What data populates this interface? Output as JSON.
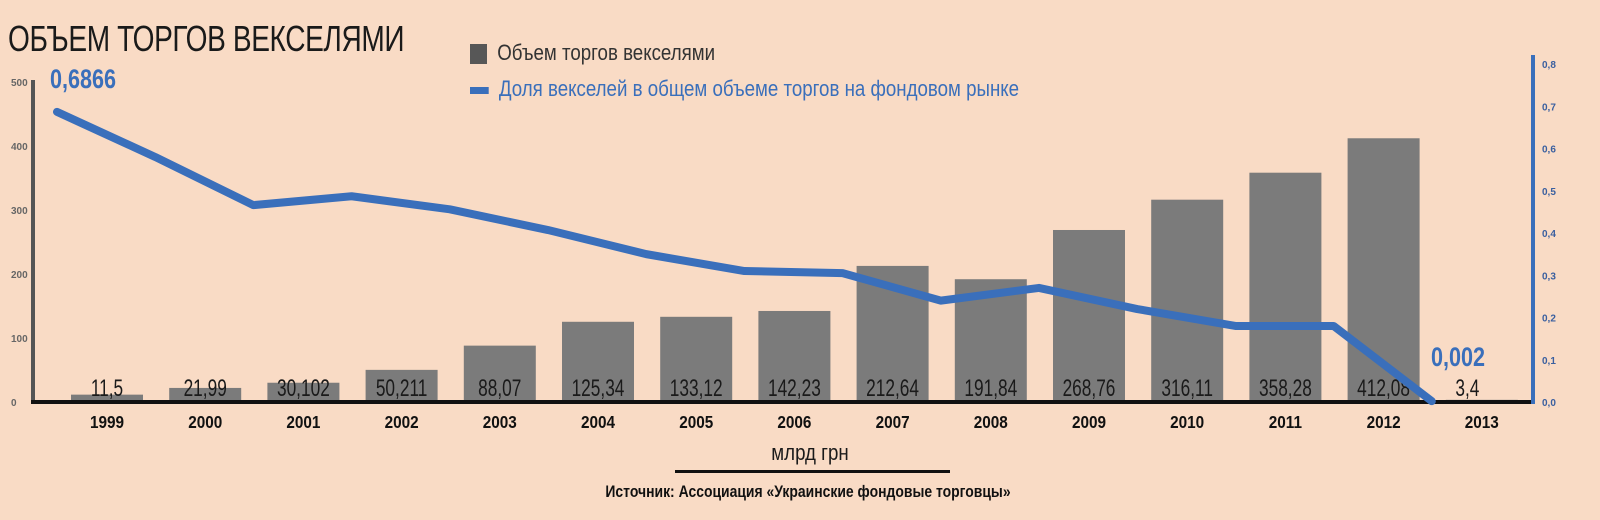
{
  "title": "ОБЪЕМ ТОРГОВ ВЕКСЕЛЯМИ",
  "unit_label": "млрд грн",
  "source": "Источник: Ассоциация «Украинские фондовые торговцы»",
  "colors": {
    "background": "#f9dbc5",
    "bar": "#7b7b7b",
    "line": "#3a6fbb",
    "axis": "#111111"
  },
  "chart_data": {
    "type": "bar+line",
    "categories": [
      "1999",
      "2000",
      "2001",
      "2002",
      "2003",
      "2004",
      "2005",
      "2006",
      "2007",
      "2008",
      "2009",
      "2010",
      "2011",
      "2012",
      "2013"
    ],
    "series": [
      {
        "name": "Объем торгов векселями",
        "type": "bar",
        "axis": "left",
        "values": [
          11.5,
          21.99,
          30.102,
          50.211,
          88.07,
          125.34,
          133.12,
          142.23,
          212.64,
          191.84,
          268.76,
          316.11,
          358.28,
          412.08,
          3.4
        ],
        "labels": [
          "11,5",
          "21,99",
          "30,102",
          "50,211",
          "88,07",
          "125,34",
          "133,12",
          "142,23",
          "212,64",
          "191,84",
          "268,76",
          "316,11",
          "358,28",
          "412,08",
          "3,4"
        ]
      },
      {
        "name": "Доля векселей в общем объеме торгов на фондовом рынке",
        "type": "line",
        "axis": "right",
        "values": [
          0.6866,
          0.58,
          0.466,
          0.487,
          0.456,
          0.407,
          0.35,
          0.31,
          0.305,
          0.24,
          0.27,
          0.22,
          0.18,
          0.18,
          0.002
        ]
      }
    ],
    "annotations": [
      {
        "category": "1999",
        "text": "0,6866"
      },
      {
        "category": "2013",
        "text": "0,002"
      }
    ],
    "left_axis": {
      "ylim": [
        0,
        500
      ],
      "ticks": [
        "0",
        "100",
        "200",
        "300",
        "400",
        "500"
      ]
    },
    "right_axis": {
      "ylim": [
        0,
        0.8
      ],
      "ticks": [
        "0,0",
        "0,1",
        "0,2",
        "0,3",
        "0,4",
        "0,5",
        "0,6",
        "0,7",
        "0,8"
      ]
    },
    "legend_position": "top-center",
    "grid": false
  }
}
